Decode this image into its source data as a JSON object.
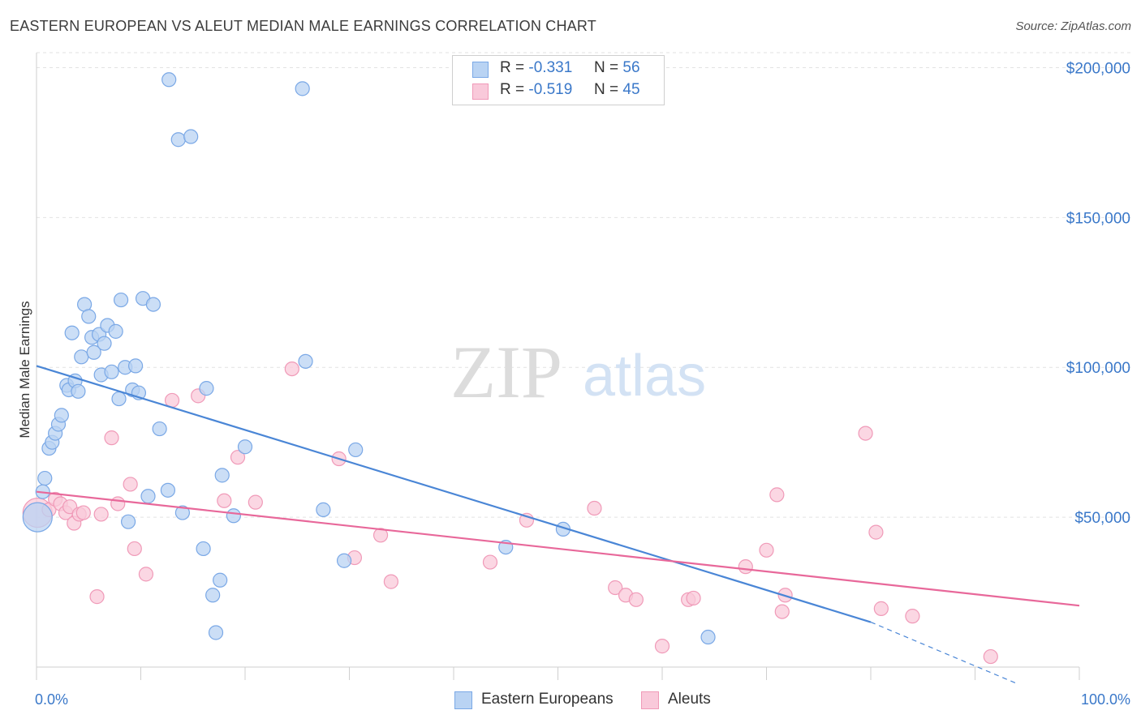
{
  "title": "EASTERN EUROPEAN VS ALEUT MEDIAN MALE EARNINGS CORRELATION CHART",
  "source": "Source: ZipAtlas.com",
  "watermark": {
    "zip": "ZIP",
    "atlas": "atlas"
  },
  "legend_top": [
    {
      "r_label": "R =",
      "r_value": "-0.331",
      "n_label": "N =",
      "n_value": "56",
      "color": "#7aa8e6",
      "fill": "#b9d3f3"
    },
    {
      "r_label": "R =",
      "r_value": "-0.519",
      "n_label": "N =",
      "n_value": "45",
      "color": "#f09ab8",
      "fill": "#f9c9da"
    }
  ],
  "legend_bottom": [
    {
      "label": "Eastern Europeans",
      "color": "#7aa8e6",
      "fill": "#b9d3f3"
    },
    {
      "label": "Aleuts",
      "color": "#f09ab8",
      "fill": "#f9c9da"
    }
  ],
  "chart_data": {
    "type": "scatter",
    "title": "EASTERN EUROPEAN VS ALEUT MEDIAN MALE EARNINGS CORRELATION CHART",
    "xlabel": "",
    "ylabel": "Median Male Earnings",
    "xlim": [
      0,
      100
    ],
    "ylim": [
      0,
      205000
    ],
    "x_tick_labels": [
      "0.0%",
      "100.0%"
    ],
    "y_ticks": [
      50000,
      100000,
      150000,
      200000
    ],
    "y_tick_labels": [
      "$50,000",
      "$100,000",
      "$150,000",
      "$200,000"
    ],
    "grid": true,
    "legend_position": "bottom",
    "series": [
      {
        "name": "Eastern Europeans",
        "color": "#4a86d6",
        "fill": "#b9d3f3",
        "trend": {
          "x0": 0,
          "y0": 100500,
          "x1": 80,
          "y1": 15000,
          "dashed_to_x": 100,
          "dashed_to_y": -6500
        },
        "points": [
          [
            0.1,
            50000
          ],
          [
            0.8,
            63000
          ],
          [
            0.6,
            58500
          ],
          [
            1.2,
            73000
          ],
          [
            1.5,
            75000
          ],
          [
            1.8,
            78000
          ],
          [
            2.1,
            81000
          ],
          [
            2.4,
            84000
          ],
          [
            2.9,
            94000
          ],
          [
            3.1,
            92500
          ],
          [
            3.4,
            111500
          ],
          [
            3.7,
            95500
          ],
          [
            4.0,
            92000
          ],
          [
            4.3,
            103500
          ],
          [
            4.6,
            121000
          ],
          [
            5.0,
            117000
          ],
          [
            5.3,
            110000
          ],
          [
            5.5,
            105000
          ],
          [
            6.0,
            111000
          ],
          [
            6.2,
            97500
          ],
          [
            6.5,
            108000
          ],
          [
            6.8,
            114000
          ],
          [
            7.2,
            98500
          ],
          [
            7.6,
            112000
          ],
          [
            7.9,
            89500
          ],
          [
            8.1,
            122500
          ],
          [
            8.5,
            100000
          ],
          [
            8.8,
            48500
          ],
          [
            9.2,
            92500
          ],
          [
            9.5,
            100500
          ],
          [
            9.8,
            91500
          ],
          [
            10.2,
            123000
          ],
          [
            10.7,
            57000
          ],
          [
            11.2,
            121000
          ],
          [
            11.8,
            79500
          ],
          [
            12.6,
            59000
          ],
          [
            12.7,
            196000
          ],
          [
            13.6,
            176000
          ],
          [
            14.0,
            51500
          ],
          [
            14.8,
            177000
          ],
          [
            16.0,
            39500
          ],
          [
            16.3,
            93000
          ],
          [
            16.9,
            24000
          ],
          [
            17.2,
            11500
          ],
          [
            17.6,
            29000
          ],
          [
            17.8,
            64000
          ],
          [
            18.9,
            50500
          ],
          [
            20.0,
            73500
          ],
          [
            25.5,
            193000
          ],
          [
            25.8,
            102000
          ],
          [
            27.5,
            52500
          ],
          [
            29.5,
            35500
          ],
          [
            30.6,
            72500
          ],
          [
            45.0,
            40000
          ],
          [
            50.5,
            46000
          ],
          [
            64.4,
            10000
          ]
        ]
      },
      {
        "name": "Aleuts",
        "color": "#e8689a",
        "fill": "#f9c9da",
        "trend": {
          "x0": 0,
          "y0": 58500,
          "x1": 100,
          "y1": 20500
        },
        "points": [
          [
            0.1,
            51500
          ],
          [
            1.2,
            52500
          ],
          [
            1.8,
            56000
          ],
          [
            2.3,
            54500
          ],
          [
            2.8,
            51500
          ],
          [
            3.2,
            53500
          ],
          [
            3.6,
            48000
          ],
          [
            4.1,
            51000
          ],
          [
            4.5,
            51500
          ],
          [
            5.8,
            23500
          ],
          [
            6.2,
            51000
          ],
          [
            7.2,
            76500
          ],
          [
            7.8,
            54500
          ],
          [
            9.0,
            61000
          ],
          [
            9.4,
            39500
          ],
          [
            10.5,
            31000
          ],
          [
            13.0,
            89000
          ],
          [
            15.5,
            90500
          ],
          [
            18.0,
            55500
          ],
          [
            19.3,
            70000
          ],
          [
            21.0,
            55000
          ],
          [
            24.5,
            99500
          ],
          [
            29.0,
            69500
          ],
          [
            30.5,
            36500
          ],
          [
            33.0,
            44000
          ],
          [
            34.0,
            28500
          ],
          [
            43.5,
            35000
          ],
          [
            47.0,
            49000
          ],
          [
            53.5,
            53000
          ],
          [
            55.5,
            26500
          ],
          [
            56.5,
            24000
          ],
          [
            57.5,
            22500
          ],
          [
            60.0,
            7000
          ],
          [
            62.5,
            22500
          ],
          [
            63.0,
            23000
          ],
          [
            68.0,
            33500
          ],
          [
            70.0,
            39000
          ],
          [
            71.0,
            57500
          ],
          [
            71.5,
            18500
          ],
          [
            71.8,
            24000
          ],
          [
            79.5,
            78000
          ],
          [
            80.5,
            45000
          ],
          [
            81.0,
            19500
          ],
          [
            84.0,
            17000
          ],
          [
            91.5,
            3500
          ]
        ]
      }
    ]
  }
}
